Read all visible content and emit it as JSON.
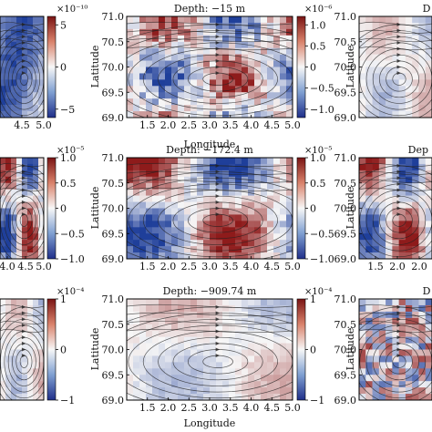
{
  "figure": {
    "axis_labels": {
      "longitude": "Longitude",
      "latitude": "Latitude"
    },
    "panel_letters": {
      "top_right": "D",
      "middle_right": "Dep",
      "bottom_right": "D"
    },
    "depth_titles": {
      "top": "Depth: −15 m",
      "middle": "Depth: −172.4 m",
      "bottom": "Depth: −909.74 m"
    }
  },
  "colors": {
    "negative": "#1f3f9a",
    "zero": "#f7f7f7",
    "positive": "#8e1b1b",
    "frame": "#000000",
    "streamline": "#222222"
  },
  "chart_data": [
    {
      "type": "heatmap",
      "panel": "top-left",
      "title": "",
      "colorbar": {
        "ticks": [
          "5",
          "0",
          "−5"
        ],
        "tick_values": [
          5,
          0,
          -5
        ],
        "scale_label": "×10⁻¹⁰",
        "range": [
          -6,
          6
        ]
      },
      "xticks": [
        "4.5",
        "5.0"
      ],
      "xlim": [
        4.0,
        5.0
      ],
      "ylim": [
        69.0,
        71.0
      ],
      "pattern": "mostly-negative"
    },
    {
      "type": "heatmap",
      "panel": "top-center",
      "title": "Depth: −15 m",
      "xlabel": "Longitude",
      "ylabel": "Latitude",
      "xticks": [
        "1.5",
        "2.0",
        "2.5",
        "3.0",
        "3.5",
        "4.0",
        "4.5",
        "5.0"
      ],
      "xlim": [
        1.0,
        5.0
      ],
      "yticks": [
        "71.0",
        "70.5",
        "70.0",
        "69.5",
        "69.0"
      ],
      "ylim": [
        69.0,
        71.0
      ],
      "colorbar": {
        "ticks": [
          "1.0",
          "0.5",
          "0",
          "−0.5",
          "−1.0"
        ],
        "tick_values": [
          1.0,
          0.5,
          0,
          -0.5,
          -1.0
        ],
        "scale_label": "×10⁻⁶",
        "range": [
          -1.2,
          1.2
        ]
      },
      "pattern": "mixed-blocky"
    },
    {
      "type": "heatmap",
      "panel": "top-right",
      "title": "D",
      "ylabel": "Latitude",
      "yticks": [
        "71.0",
        "70.5",
        "70.0",
        "69.5",
        "69.0"
      ],
      "ylim": [
        69.0,
        71.0
      ],
      "pattern": "weak"
    },
    {
      "type": "heatmap",
      "panel": "middle-left",
      "title": "",
      "colorbar": {
        "ticks": [
          "1.0",
          "0.5",
          "0",
          "−0.5",
          "−1.0"
        ],
        "tick_values": [
          1.0,
          0.5,
          0,
          -0.5,
          -1.0
        ],
        "scale_label": "×10⁻⁵",
        "range": [
          -1.0,
          1.0
        ]
      },
      "xticks": [
        "4.0",
        "4.5",
        "5.0"
      ],
      "xlim": [
        3.8,
        5.0
      ],
      "ylim": [
        69.0,
        71.0
      ],
      "pattern": "mixed-strong"
    },
    {
      "type": "heatmap",
      "panel": "middle-center",
      "title": "Depth: −172.4 m",
      "ylabel": "Latitude",
      "xticks": [
        "1.5",
        "2.0",
        "2.5",
        "3.0",
        "3.5",
        "4.0",
        "4.5",
        "5.0"
      ],
      "xlim": [
        1.0,
        5.0
      ],
      "yticks": [
        "71.0",
        "70.5",
        "70.0",
        "69.5",
        "69.0"
      ],
      "ylim": [
        69.0,
        71.0
      ],
      "colorbar": {
        "ticks": [
          "1.0",
          "0.5",
          "0",
          "−0.5",
          "−1.0"
        ],
        "tick_values": [
          1.0,
          0.5,
          0,
          -0.5,
          -1.0
        ],
        "scale_label": "×10⁻⁵",
        "range": [
          -1.0,
          1.0
        ]
      },
      "pattern": "mixed-strong"
    },
    {
      "type": "heatmap",
      "panel": "middle-right",
      "title": "Dep",
      "ylabel": "Latitude",
      "yticks": [
        "71.0",
        "70.5",
        "70.0",
        "69.5",
        "69.0"
      ],
      "ylim": [
        69.0,
        71.0
      ],
      "xticks": [
        "1.5",
        "2.0",
        "2.0"
      ],
      "xlim": [
        1.0,
        2.3
      ],
      "pattern": "mixed-strong"
    },
    {
      "type": "heatmap",
      "panel": "bottom-left",
      "title": "",
      "colorbar": {
        "ticks": [
          "1",
          "0",
          "−1"
        ],
        "tick_values": [
          1,
          0,
          -1
        ],
        "scale_label": "×10⁻⁴",
        "range": [
          -1.0,
          1.0
        ]
      },
      "xlim": [
        3.8,
        5.0
      ],
      "ylim": [
        69.0,
        71.0
      ],
      "pattern": "weak"
    },
    {
      "type": "heatmap",
      "panel": "bottom-center",
      "title": "Depth: −909.74 m",
      "xlabel": "Longitude",
      "ylabel": "Latitude",
      "xticks": [
        "1.5",
        "2.0",
        "2.5",
        "3.0",
        "3.5",
        "4.0",
        "4.5",
        "5.0"
      ],
      "xlim": [
        1.0,
        5.0
      ],
      "yticks": [
        "71.0",
        "70.5",
        "70.0",
        "69.5",
        "69.0"
      ],
      "ylim": [
        69.0,
        71.0
      ],
      "colorbar": {
        "ticks": [
          "1",
          "0",
          "−1"
        ],
        "tick_values": [
          1,
          0,
          -1
        ],
        "scale_label": "×10⁻⁴",
        "range": [
          -1.0,
          1.0
        ]
      },
      "pattern": "weak"
    },
    {
      "type": "heatmap",
      "panel": "bottom-right",
      "title": "D",
      "ylabel": "Latitude",
      "yticks": [
        "71.0",
        "70.5",
        "70.0",
        "69.5",
        "69.0"
      ],
      "ylim": [
        69.0,
        71.0
      ],
      "pattern": "noisy"
    }
  ]
}
